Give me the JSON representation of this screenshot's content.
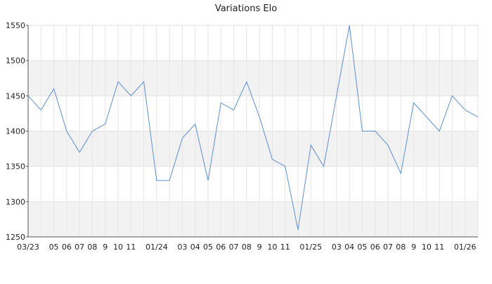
{
  "chart_data": {
    "type": "line",
    "title": "Variations Elo",
    "categories": [
      "03/23",
      null,
      "05",
      "06",
      "07",
      "08",
      "9",
      "10",
      "11",
      null,
      "01/24",
      null,
      "03",
      "04",
      "05",
      "06",
      "07",
      "08",
      "9",
      "10",
      "11",
      null,
      "01/25",
      null,
      "03",
      "04",
      "05",
      "06",
      "07",
      "08",
      "9",
      "10",
      "11",
      null,
      "01/26",
      null
    ],
    "series": [
      {
        "name": "Elo",
        "color": "#5b8fd9",
        "values": [
          1450,
          1430,
          1460,
          1400,
          1370,
          1400,
          1410,
          1470,
          1450,
          1470,
          1330,
          1330,
          1390,
          1410,
          1330,
          1440,
          1430,
          1470,
          1420,
          1360,
          1350,
          1260,
          1380,
          1350,
          1450,
          1550,
          1400,
          1400,
          1380,
          1340,
          1440,
          1420,
          1400,
          1450,
          1430,
          1420
        ]
      }
    ],
    "ylim": [
      1250,
      1550
    ],
    "yticks": [
      1250,
      1300,
      1350,
      1400,
      1450,
      1500,
      1550
    ],
    "grid": true,
    "bands": true
  }
}
